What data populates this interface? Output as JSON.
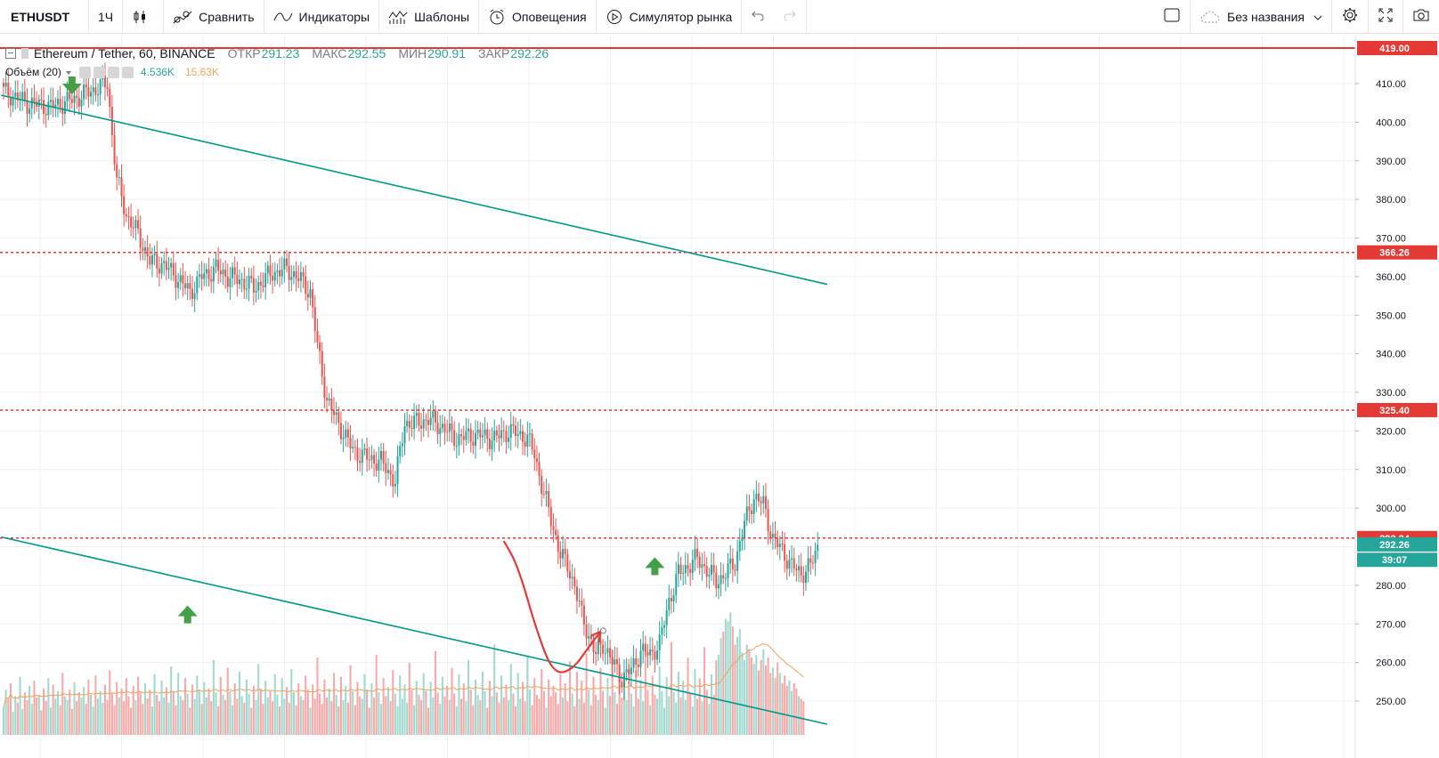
{
  "toolbar": {
    "symbol": "ETHUSDT",
    "interval": "1Ч",
    "compare": "Сравнить",
    "indicators": "Индикаторы",
    "templates": "Шаблоны",
    "alerts": "Оповещения",
    "replay": "Симулятор рынка",
    "layout_name": "Без названия"
  },
  "legend": {
    "instrument": "Ethereum / Tether, 60, BINANCE",
    "open_label": "ОТКР",
    "open": "291.23",
    "high_label": "МАКС",
    "high": "292.55",
    "low_label": "МИН",
    "low": "290.91",
    "close_label": "ЗАКР",
    "close": "292.26",
    "volume_label": "Объём (20)",
    "volume": "4.536K",
    "volume_ma": "15.63K"
  },
  "colors": {
    "up": "#26a69a",
    "down": "#ef5350",
    "level": "#e53935",
    "channel": "#009688",
    "arrow": "#43a047",
    "grid": "#eef0f4"
  },
  "chart_data": {
    "type": "candlestick",
    "symbol": "Ethereum / Tether",
    "timeframe": "60",
    "exchange": "BINANCE",
    "ylim": [
      245,
      420
    ],
    "y_ticks": [
      "410.00",
      "400.00",
      "390.00",
      "380.00",
      "370.00",
      "360.00",
      "350.00",
      "340.00",
      "330.00",
      "320.00",
      "310.00",
      "300.00",
      "280.00",
      "270.00",
      "260.00",
      "250.00"
    ],
    "price_tags": [
      {
        "label": "419.00",
        "value": 419.0,
        "color": "#e53935"
      },
      {
        "label": "366.26",
        "value": 366.26,
        "color": "#e53935"
      },
      {
        "label": "325.40",
        "value": 325.4,
        "color": "#e53935"
      },
      {
        "label": "292.24",
        "value": 292.24,
        "color": "#e53935"
      },
      {
        "label": "292.26",
        "value": 290.6,
        "color": "#26a69a"
      },
      {
        "label": "39:07",
        "value": 286.6,
        "color": "#26a69a"
      }
    ],
    "horizontal_levels": [
      {
        "value": 419.0,
        "style": "solid"
      },
      {
        "value": 366.26,
        "style": "dashed"
      },
      {
        "value": 325.4,
        "style": "dashed"
      },
      {
        "value": 292.24,
        "style": "dashed"
      }
    ],
    "close_path": [
      [
        0,
        408
      ],
      [
        10,
        405
      ],
      [
        20,
        404
      ],
      [
        30,
        406
      ],
      [
        40,
        409
      ],
      [
        44,
        410
      ],
      [
        46,
        397
      ],
      [
        48,
        385
      ],
      [
        52,
        376
      ],
      [
        57,
        371
      ],
      [
        62,
        364
      ],
      [
        68,
        363
      ],
      [
        73,
        360
      ],
      [
        79,
        356
      ],
      [
        84,
        360
      ],
      [
        90,
        362
      ],
      [
        95,
        360
      ],
      [
        101,
        359
      ],
      [
        106,
        357
      ],
      [
        114,
        361
      ],
      [
        120,
        362
      ],
      [
        126,
        359
      ],
      [
        130,
        356
      ],
      [
        133,
        342
      ],
      [
        137,
        328
      ],
      [
        141,
        323
      ],
      [
        148,
        315
      ],
      [
        154,
        313
      ],
      [
        160,
        312
      ],
      [
        166,
        307
      ],
      [
        170,
        322
      ],
      [
        174,
        322
      ],
      [
        180,
        323
      ],
      [
        186,
        321
      ],
      [
        192,
        318
      ],
      [
        200,
        319
      ],
      [
        208,
        318
      ],
      [
        214,
        320
      ],
      [
        219,
        319
      ],
      [
        222,
        318
      ],
      [
        225,
        314
      ],
      [
        228,
        306
      ],
      [
        232,
        297
      ],
      [
        236,
        288
      ],
      [
        239,
        285
      ],
      [
        242,
        280
      ],
      [
        245,
        272
      ],
      [
        248,
        267
      ],
      [
        251,
        262
      ],
      [
        254,
        265
      ],
      [
        258,
        260
      ],
      [
        262,
        256
      ],
      [
        266,
        258
      ],
      [
        270,
        263
      ],
      [
        274,
        262
      ],
      [
        278,
        265
      ],
      [
        282,
        276
      ],
      [
        286,
        283
      ],
      [
        290,
        285
      ],
      [
        294,
        287
      ],
      [
        298,
        284
      ],
      [
        302,
        281
      ],
      [
        306,
        283
      ],
      [
        310,
        286
      ],
      [
        314,
        296
      ],
      [
        318,
        303
      ],
      [
        322,
        301
      ],
      [
        326,
        292
      ],
      [
        330,
        289
      ],
      [
        334,
        285
      ],
      [
        338,
        283
      ],
      [
        342,
        285
      ],
      [
        345,
        290
      ]
    ],
    "total_bars": 346,
    "volume_heights": [
      22,
      35,
      28,
      40,
      18,
      30,
      25,
      45,
      20,
      33,
      27,
      38,
      24,
      42,
      29,
      31,
      19,
      36,
      26,
      44,
      21,
      39,
      28,
      34,
      23,
      48,
      30,
      27,
      35,
      20,
      41,
      26,
      33,
      29,
      37,
      24,
      43,
      31,
      22,
      46,
      28,
      34,
      25,
      39,
      27,
      50,
      32,
      23,
      41,
      29,
      36,
      26,
      44,
      30,
      21,
      38,
      27,
      45,
      33,
      24,
      40,
      28,
      35,
      22,
      47,
      31,
      26,
      42,
      29,
      37,
      25,
      53,
      34,
      23,
      48,
      30,
      27,
      44,
      32,
      21,
      39,
      28,
      46,
      35,
      24,
      41,
      29,
      36,
      26,
      58,
      33,
      22,
      45,
      31,
      27,
      52,
      34,
      23,
      40,
      28,
      49,
      30,
      25,
      43,
      32,
      21,
      38,
      27,
      55,
      36,
      24,
      42,
      29,
      34,
      26,
      47,
      31,
      22,
      44,
      28,
      37,
      25,
      51,
      33,
      23,
      40,
      30,
      27,
      46,
      35,
      21,
      39,
      28,
      60,
      32,
      24,
      43,
      29,
      36,
      26,
      48,
      31,
      22,
      45,
      27,
      38,
      25,
      54,
      34,
      23,
      41,
      30,
      28,
      47,
      35,
      21,
      40,
      29,
      62,
      33,
      24,
      44,
      30,
      37,
      26,
      50,
      32,
      22,
      46,
      28,
      39,
      25,
      56,
      35,
      23,
      42,
      31,
      27,
      48,
      34,
      21,
      41,
      29,
      65,
      33,
      24,
      45,
      30,
      38,
      27,
      52,
      32,
      22,
      47,
      28,
      40,
      26,
      58,
      35,
      23,
      43,
      31,
      27,
      49,
      34,
      21,
      42,
      30,
      70,
      33,
      25,
      46,
      29,
      39,
      27,
      55,
      32,
      22,
      48,
      28,
      41,
      26,
      61,
      35,
      23,
      44,
      31,
      28,
      51,
      34,
      21,
      43,
      30,
      38,
      33,
      24,
      47,
      29,
      40,
      26,
      57,
      32,
      22,
      49,
      28,
      42,
      25,
      63,
      35,
      23,
      45,
      31,
      27,
      52,
      34,
      21,
      44,
      30,
      66,
      33,
      24,
      48,
      29,
      41,
      27,
      59,
      32,
      22,
      50,
      28,
      43,
      26,
      64,
      35,
      23,
      46,
      31,
      28,
      53,
      34,
      21,
      45,
      30,
      72,
      33,
      25,
      49,
      29,
      42,
      27,
      60,
      32,
      22,
      51,
      28,
      44,
      26,
      68,
      35,
      24,
      47,
      31,
      58,
      62,
      75,
      80,
      90,
      88,
      95,
      84,
      70,
      76,
      82,
      64,
      58,
      70,
      66,
      60,
      55,
      62,
      50,
      58,
      66,
      54,
      60,
      48,
      52,
      44,
      56,
      48,
      40,
      46,
      38,
      42,
      34,
      40,
      36,
      30,
      28,
      26
    ],
    "channel_lines": [
      {
        "from": [
          -1,
          407
        ],
        "to": [
          349,
          358
        ]
      },
      {
        "from": [
          -1,
          292.5
        ],
        "to": [
          349,
          244
        ]
      }
    ],
    "annotations": {
      "up_arrows": [
        [
          78,
          272
        ],
        [
          276,
          284.5
        ]
      ],
      "down_arrow": [
        29,
        410
      ],
      "forecast_curve": [
        [
          212,
          291.5
        ],
        [
          218,
          285
        ],
        [
          226,
          268
        ],
        [
          233,
          257
        ],
        [
          241,
          258
        ],
        [
          248,
          264
        ],
        [
          253,
          268
        ]
      ]
    }
  }
}
